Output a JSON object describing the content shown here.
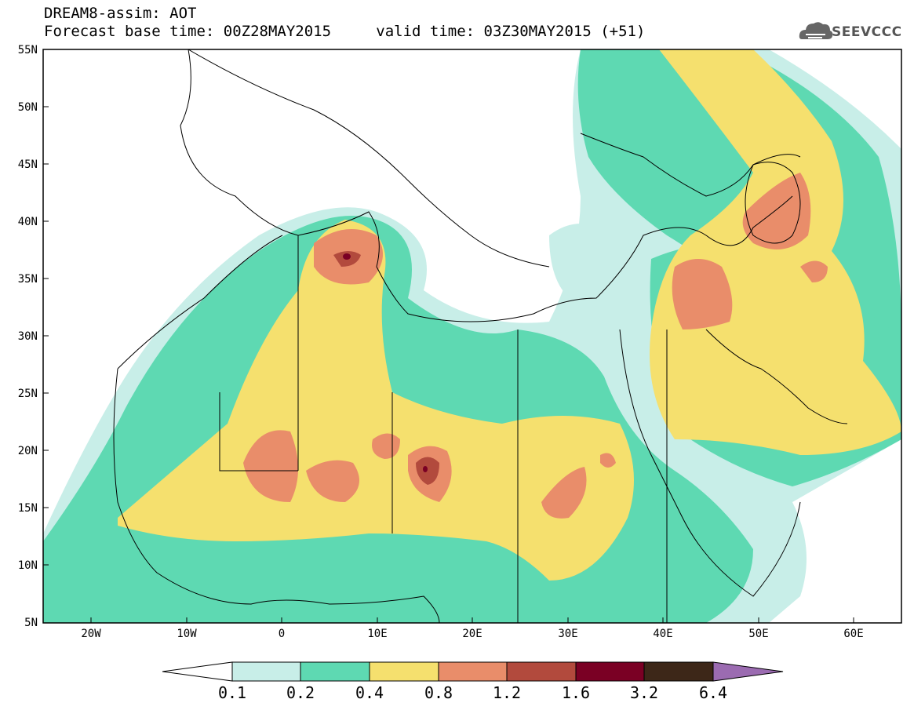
{
  "title": {
    "line1": "DREAM8-assim: AOT",
    "line2_base": "Forecast base time: 00Z28MAY2015",
    "line2_valid": "valid time: 03Z30MAY2015 (+51)"
  },
  "logo": {
    "text": "SEEVCCC",
    "icon": "cloud-icon"
  },
  "map": {
    "variable": "AOT",
    "lon_ticks": [
      "20W",
      "10W",
      "0",
      "10E",
      "20E",
      "30E",
      "40E",
      "50E",
      "60E"
    ],
    "lat_ticks": [
      "55N",
      "50N",
      "45N",
      "40N",
      "35N",
      "30N",
      "25N",
      "20N",
      "15N",
      "10N",
      "5N"
    ]
  },
  "colorbar": {
    "labels": [
      "0.1",
      "0.2",
      "0.4",
      "0.8",
      "1.2",
      "1.6",
      "3.2",
      "6.4"
    ],
    "colors": [
      "#ffffff",
      "#c8eee8",
      "#5ed9b2",
      "#f5e06e",
      "#e98d6a",
      "#b24a3d",
      "#7a0024",
      "#3d2718",
      "#9b6bb1"
    ]
  }
}
